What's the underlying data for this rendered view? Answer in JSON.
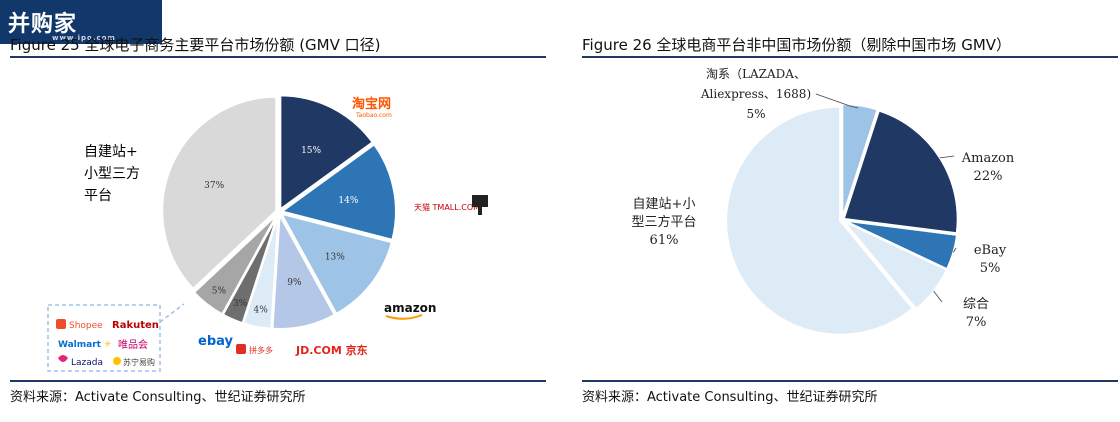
{
  "watermark": {
    "text": "并购家",
    "sub": "www.ipo.com"
  },
  "left": {
    "figure_title": "Figure 25 全球电子商务主要平台市场份额 (GMV 口径)",
    "source": "资料来源：Activate Consulting、世纪证券研究所",
    "annotation_self_built": [
      "自建站+",
      "小型三方",
      "平台"
    ],
    "logos": {
      "taobao": "淘宝网",
      "taobao_sub": "Taobao.com",
      "tmall": "天猫 TMALL.COM",
      "amazon": "amazon",
      "jd": "JD.COM 京东",
      "pinduoduo": "拼多多",
      "ebay": "ebay",
      "shopee": "Shopee",
      "rakuten": "Rakuten",
      "walmart": "Walmart",
      "vip": "唯品会",
      "lazada": "Lazada",
      "suning": "苏宁易购"
    }
  },
  "right": {
    "figure_title": "Figure 26 全球电商平台非中国市场份额（剔除中国市场 GMV）",
    "source": "资料来源：Activate Consulting、世纪证券研究所"
  },
  "colors": {
    "navy": "#1f3864",
    "blue": "#2e75b6",
    "lightblue": "#9dc3e6",
    "lavender": "#b4c7e7",
    "pale": "#ddebf7",
    "darkgray": "#6e6e6e",
    "gray": "#a6a6a6",
    "lightgray": "#d9d9d9"
  },
  "chart_data": [
    {
      "type": "pie",
      "slices": [
        {
          "value": 15,
          "label": "15%",
          "color": "#1f3864"
        },
        {
          "value": 14,
          "label": "14%",
          "color": "#2e75b6"
        },
        {
          "value": 13,
          "label": "13%",
          "color": "#9dc3e6"
        },
        {
          "value": 9,
          "label": "9%",
          "color": "#b4c7e7"
        },
        {
          "value": 4,
          "label": "4%",
          "color": "#ddebf7"
        },
        {
          "value": 3,
          "label": "3%",
          "color": "#6e6e6e"
        },
        {
          "value": 5,
          "label": "5%",
          "color": "#a6a6a6"
        },
        {
          "value": 37,
          "label": "37%",
          "color": "#d9d9d9"
        }
      ]
    },
    {
      "type": "pie",
      "slices": [
        {
          "value": 5,
          "label_lines": [],
          "color": "#9dc3e6"
        },
        {
          "value": 22,
          "label_lines": [
            "Amazon",
            "22%"
          ],
          "color": "#1f3864"
        },
        {
          "value": 5,
          "label_lines": [
            "eBay",
            "5%"
          ],
          "color": "#2e75b6"
        },
        {
          "value": 7,
          "label_lines": [
            "综合",
            "7%"
          ],
          "color": "#ddebf7"
        },
        {
          "value": 61,
          "label_lines": [
            "自建站+小",
            "型三方平台",
            "61%"
          ],
          "color": "#ddebf7"
        }
      ],
      "taoxi_label": [
        "淘系（LAZADA、",
        "Aliexpress、1688)",
        "5%"
      ]
    }
  ]
}
